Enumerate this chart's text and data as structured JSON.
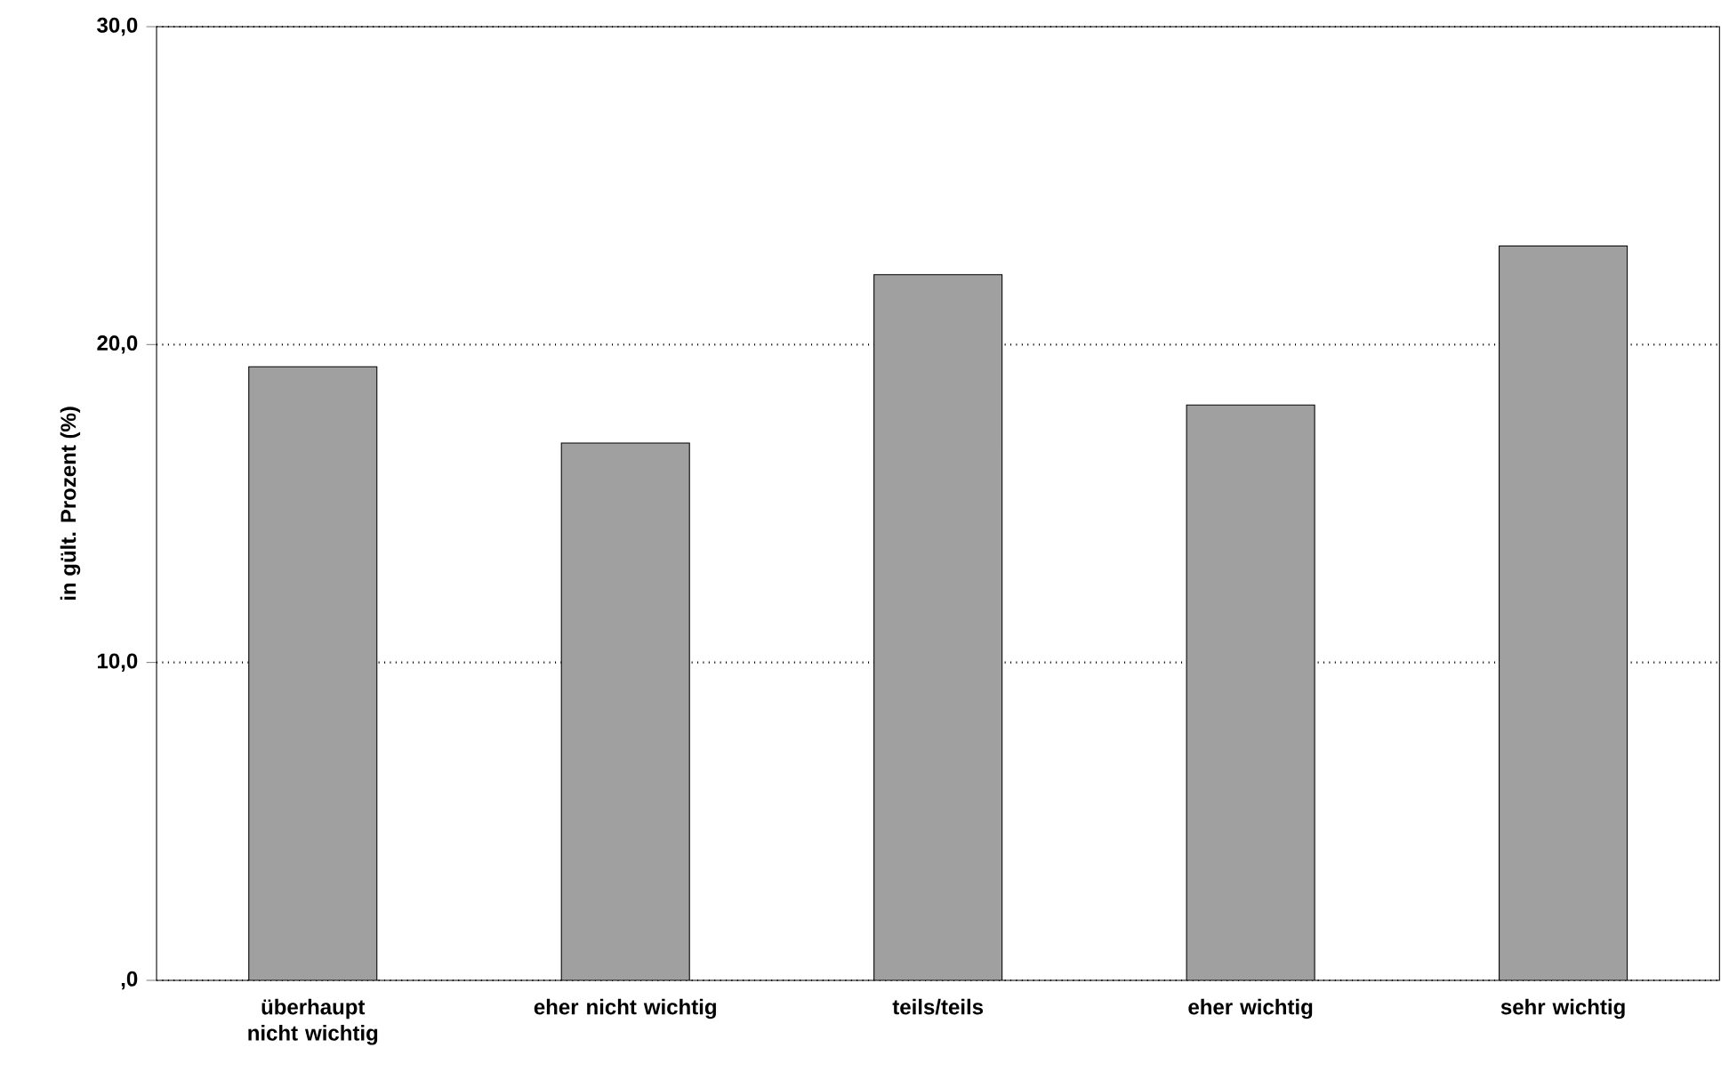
{
  "chart_data": {
    "type": "bar",
    "ylabel": "in gült. Prozent (%)",
    "categories": [
      "überhaupt nicht wichtig",
      "eher nicht wichtig",
      "teils/teils",
      "eher wichtig",
      "sehr wichtig"
    ],
    "values": [
      19.3,
      16.9,
      22.2,
      18.1,
      23.1
    ],
    "color": "#a0a0a0",
    "ylim": [
      0,
      30
    ],
    "yticks": [
      {
        "value": 0,
        "label": ",0"
      },
      {
        "value": 10,
        "label": "10,0"
      },
      {
        "value": 20,
        "label": "20,0"
      },
      {
        "value": 30,
        "label": "30,0"
      }
    ],
    "grid": "y"
  }
}
